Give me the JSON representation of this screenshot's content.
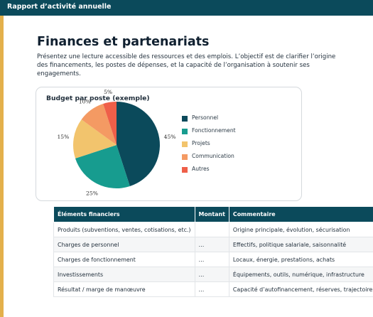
{
  "header": {
    "title": "Rapport d’activité annuelle"
  },
  "page": {
    "title": "Finances et partenariats",
    "intro": "Présentez une lecture accessible des ressources et des emplois. L’objectif est de clarifier l’origine des financements, les postes de dépenses, et la capacité de l’organisation à soutenir ses engagements."
  },
  "chart_data": {
    "type": "pie",
    "title": "Budget par poste (exemple)",
    "categories": [
      "Personnel",
      "Fonctionnement",
      "Projets",
      "Communication",
      "Autres"
    ],
    "values": [
      45,
      25,
      15,
      10,
      5
    ],
    "colors": [
      "#0b4a5b",
      "#179c8f",
      "#f2c46d",
      "#f49a63",
      "#ef5f49"
    ],
    "value_suffix": "%",
    "legend_position": "right"
  },
  "table": {
    "headers": [
      "Éléments financiers",
      "Montant",
      "Commentaire"
    ],
    "rows": [
      [
        "Produits (subventions, ventes, cotisations, etc.)",
        "",
        "Origine principale, évolution, sécurisation"
      ],
      [
        "Charges de personnel",
        "…",
        "Effectifs, politique salariale, saisonnalité"
      ],
      [
        "Charges de fonctionnement",
        "…",
        "Locaux, énergie, prestations, achats"
      ],
      [
        "Investissements",
        "…",
        "Équipements, outils, numérique, infrastructure"
      ],
      [
        "Résultat / marge de manœuvre",
        "…",
        "Capacité d’autofinancement, réserves, trajectoire"
      ]
    ]
  },
  "colors": {
    "header_bg": "#0b4a5b",
    "accent_bar": "#e3b04b"
  }
}
